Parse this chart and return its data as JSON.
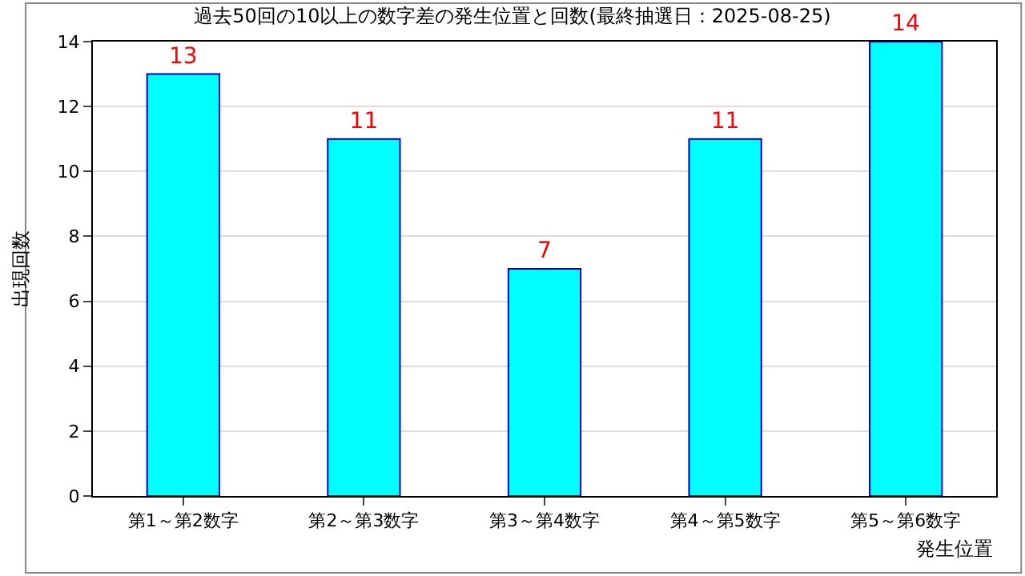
{
  "chart_data": {
    "type": "bar",
    "title": "過去50回の10以上の数字差の発生位置と回数(最終抽選日：2025-08-25)",
    "xlabel": "発生位置",
    "ylabel": "出現回数",
    "categories": [
      "第1～第2数字",
      "第2～第3数字",
      "第3～第4数字",
      "第4～第5数字",
      "第5～第6数字"
    ],
    "series": [
      {
        "color": "#00ffff",
        "values": [
          13,
          11,
          7,
          11,
          14
        ]
      }
    ],
    "ylim": [
      0,
      14
    ],
    "yticks": [
      0,
      2,
      4,
      6,
      8,
      10,
      12,
      14
    ],
    "grid": "y",
    "data_labels": true
  }
}
